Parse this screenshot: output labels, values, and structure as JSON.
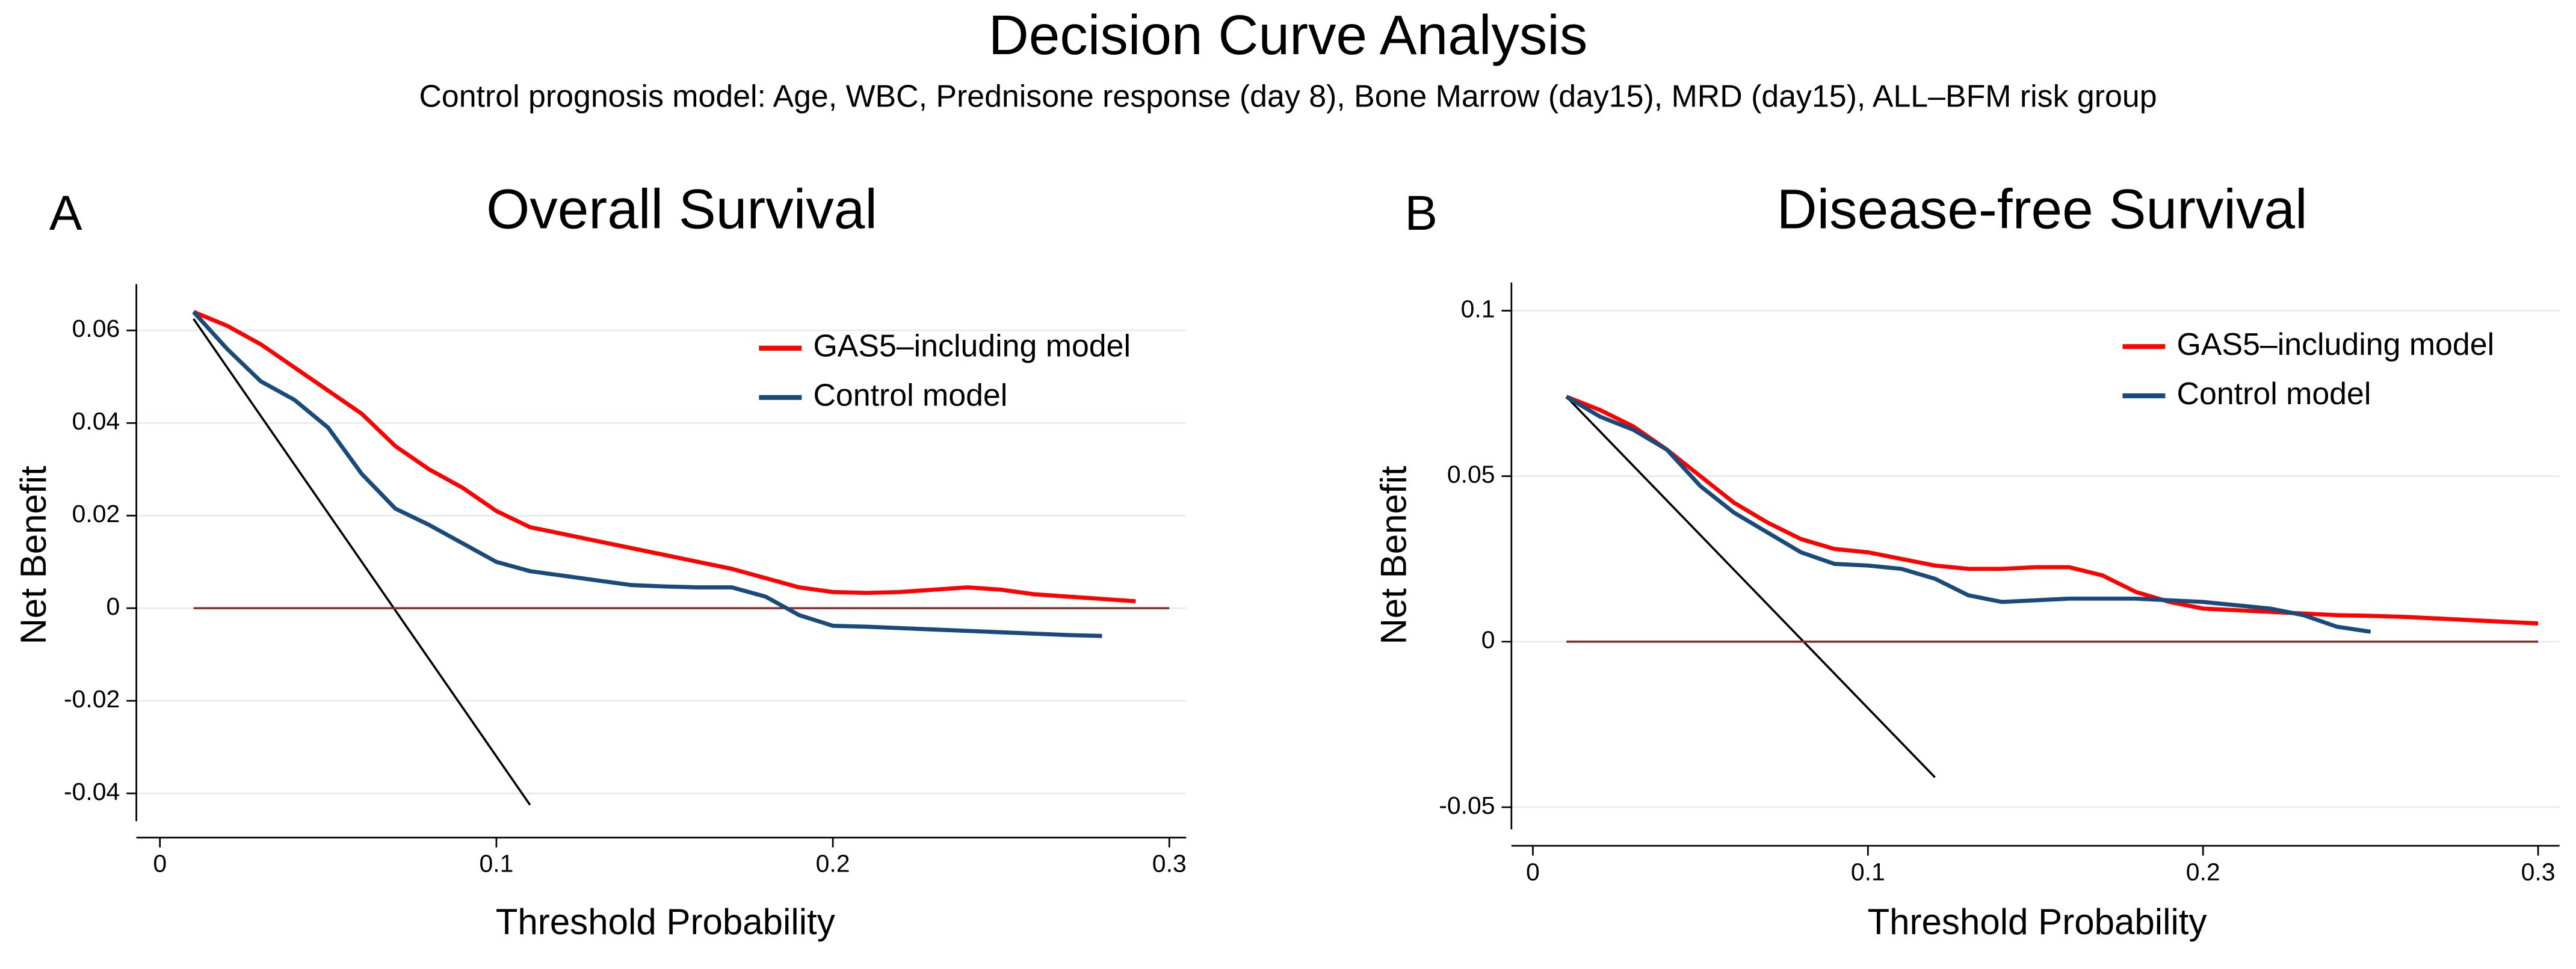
{
  "figure": {
    "title": "Decision Curve Analysis",
    "subtitle": "Control prognosis model: Age, WBC, Prednisone response (day 8), Bone Marrow (day15), MRD (day15), ALL–BFM risk group"
  },
  "chart_data": [
    {
      "type": "line",
      "panel_label": "A",
      "title": "Overall Survival",
      "x_label": "Threshold Probability",
      "y_label": "Net Benefit",
      "xlim": [
        -0.007,
        0.305
      ],
      "ylim": [
        -0.046,
        0.07
      ],
      "xticks": [
        0,
        0.1,
        0.2,
        0.3
      ],
      "yticks": [
        -0.04,
        -0.02,
        0,
        0.02,
        0.04,
        0.06
      ],
      "grid": true,
      "legend": "upper-right",
      "x": [
        0.01,
        0.02,
        0.03,
        0.04,
        0.05,
        0.06,
        0.07,
        0.08,
        0.09,
        0.1,
        0.11,
        0.12,
        0.13,
        0.14,
        0.15,
        0.16,
        0.17,
        0.18,
        0.19,
        0.2,
        0.21,
        0.22,
        0.23,
        0.24,
        0.25,
        0.26,
        0.27,
        0.28,
        0.29,
        0.3
      ],
      "series": [
        {
          "name": "GAS5–including model",
          "color": "#ff0000",
          "values": [
            0.064,
            0.061,
            0.057,
            0.052,
            0.047,
            0.042,
            0.035,
            0.03,
            0.026,
            0.021,
            0.0175,
            0.016,
            0.0145,
            0.013,
            0.0115,
            0.01,
            0.0085,
            0.0065,
            0.0045,
            0.0035,
            0.0033,
            0.0035,
            0.004,
            0.0045,
            0.004,
            0.003,
            0.0025,
            0.002,
            0.0015,
            null
          ]
        },
        {
          "name": "Control model",
          "color": "#1a4a7a",
          "values": [
            0.064,
            0.056,
            0.049,
            0.045,
            0.039,
            0.029,
            0.0215,
            0.018,
            0.014,
            0.01,
            0.008,
            0.007,
            0.006,
            0.005,
            0.0047,
            0.0045,
            0.0045,
            0.0025,
            -0.0015,
            -0.0038,
            -0.004,
            -0.0043,
            -0.0046,
            -0.0049,
            -0.0052,
            -0.0055,
            -0.0058,
            -0.006,
            null,
            null
          ]
        }
      ],
      "reference_lines": [
        {
          "color": "#000000",
          "x": [
            0.01,
            0.11
          ],
          "values": [
            0.0625,
            -0.0425
          ]
        },
        {
          "color": "#8b2a2a",
          "x": [
            0.01,
            0.3
          ],
          "values": [
            0,
            0
          ]
        }
      ]
    },
    {
      "type": "line",
      "panel_label": "B",
      "title": "Disease-free Survival",
      "x_label": "Threshold Probability",
      "y_label": "Net Benefit",
      "xlim": [
        -0.0064,
        0.3064
      ],
      "ylim": [
        -0.0567,
        0.1085
      ],
      "xticks": [
        0,
        0.1,
        0.2,
        0.3
      ],
      "yticks": [
        -0.05,
        0,
        0.05,
        0.1
      ],
      "grid": true,
      "legend": "upper-right",
      "x": [
        0.01,
        0.02,
        0.03,
        0.04,
        0.05,
        0.06,
        0.07,
        0.08,
        0.09,
        0.1,
        0.11,
        0.12,
        0.13,
        0.14,
        0.15,
        0.16,
        0.17,
        0.18,
        0.19,
        0.2,
        0.21,
        0.22,
        0.23,
        0.24,
        0.25,
        0.26,
        0.27,
        0.28,
        0.29,
        0.3
      ],
      "series": [
        {
          "name": "GAS5–including model",
          "color": "#ff0000",
          "values": [
            0.074,
            0.07,
            0.065,
            0.058,
            0.05,
            0.042,
            0.036,
            0.031,
            0.028,
            0.027,
            0.025,
            0.023,
            0.022,
            0.022,
            0.0225,
            0.0225,
            0.02,
            0.015,
            0.012,
            0.01,
            0.0095,
            0.009,
            0.0085,
            0.008,
            0.0078,
            0.0075,
            0.007,
            0.0065,
            0.006,
            0.0055
          ]
        },
        {
          "name": "Control model",
          "color": "#1a4a7a",
          "values": [
            0.074,
            0.068,
            0.064,
            0.058,
            0.047,
            0.039,
            0.033,
            0.027,
            0.0235,
            0.023,
            0.022,
            0.019,
            0.014,
            0.012,
            0.0125,
            0.013,
            0.013,
            0.013,
            0.0125,
            0.012,
            0.011,
            0.01,
            0.008,
            0.0045,
            0.003,
            null,
            null,
            null,
            null,
            null
          ]
        }
      ],
      "reference_lines": [
        {
          "color": "#000000",
          "x": [
            0.01,
            0.12
          ],
          "values": [
            0.074,
            -0.041
          ]
        },
        {
          "color": "#8b2a2a",
          "x": [
            0.01,
            0.3
          ],
          "values": [
            0,
            0
          ]
        }
      ]
    }
  ]
}
